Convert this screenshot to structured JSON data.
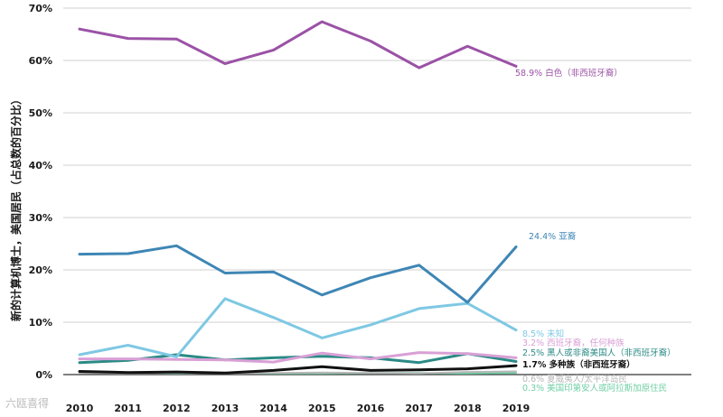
{
  "chart_data": {
    "type": "line",
    "ylabel": "新的计算机博士，美国居民（占总数的百分比）",
    "x": [
      2010,
      2011,
      2012,
      2013,
      2014,
      2015,
      2016,
      2017,
      2018,
      2019
    ],
    "ylim": [
      0,
      70
    ],
    "yticks": [
      "0%",
      "10%",
      "20%",
      "30%",
      "40%",
      "50%",
      "60%",
      "70%"
    ],
    "series": [
      {
        "name": "白色（非西班牙裔）",
        "label": "58.9% 白色（非西班牙裔）",
        "color": "#9b52a6",
        "width": 3,
        "values": [
          66.0,
          64.2,
          64.1,
          59.4,
          62.0,
          67.4,
          63.7,
          58.6,
          62.7,
          58.9
        ]
      },
      {
        "name": "亚裔",
        "label": "24.4% 亚裔",
        "color": "#3e86b5",
        "width": 3,
        "values": [
          23.0,
          23.1,
          24.6,
          19.4,
          19.6,
          15.2,
          18.5,
          20.9,
          13.8,
          24.4
        ]
      },
      {
        "name": "未知",
        "label": "8.5% 未知",
        "color": "#7ec8e3",
        "width": 3,
        "values": [
          3.8,
          5.6,
          3.4,
          14.5,
          10.9,
          7.0,
          9.5,
          12.6,
          13.6,
          8.5
        ]
      },
      {
        "name": "西班牙裔，任何种族",
        "label": "3.2% 西班牙裔，任何种族",
        "color": "#d9a0d6",
        "width": 3,
        "values": [
          3.0,
          3.0,
          2.9,
          2.8,
          2.4,
          4.1,
          3.0,
          4.2,
          4.0,
          3.2
        ]
      },
      {
        "name": "黑人或非裔美国人（非西班牙裔）",
        "label": "2.5% 黑人或非裔美国人（非西班牙裔）",
        "color": "#2b8a85",
        "width": 3,
        "values": [
          2.3,
          2.7,
          3.8,
          2.8,
          3.2,
          3.5,
          3.2,
          2.3,
          4.0,
          2.5
        ]
      },
      {
        "name": "多种族（非西班牙裔）",
        "label": "1.7% 多种族（非西班牙裔）",
        "color": "#111111",
        "width": 3,
        "values": [
          0.6,
          0.4,
          0.5,
          0.3,
          0.8,
          1.5,
          0.8,
          0.9,
          1.1,
          1.7
        ]
      },
      {
        "name": "夏威夷人/太平洋岛民",
        "label": "0.6% 夏威夷人/太平洋岛民",
        "color": "#b7b7b7",
        "width": 2,
        "values": [
          0.3,
          0.2,
          0.3,
          0.2,
          0.3,
          0.4,
          0.3,
          0.2,
          0.5,
          0.6
        ]
      },
      {
        "name": "美国印第安人或阿拉斯加原住民",
        "label": "0.3% 美国印第安人或阿拉斯加原住民",
        "color": "#6fcfa5",
        "width": 2,
        "values": [
          0.5,
          0.3,
          0.2,
          0.3,
          0.2,
          0.2,
          0.3,
          0.3,
          0.2,
          0.3
        ]
      }
    ]
  },
  "watermark": "六瓯喜得"
}
